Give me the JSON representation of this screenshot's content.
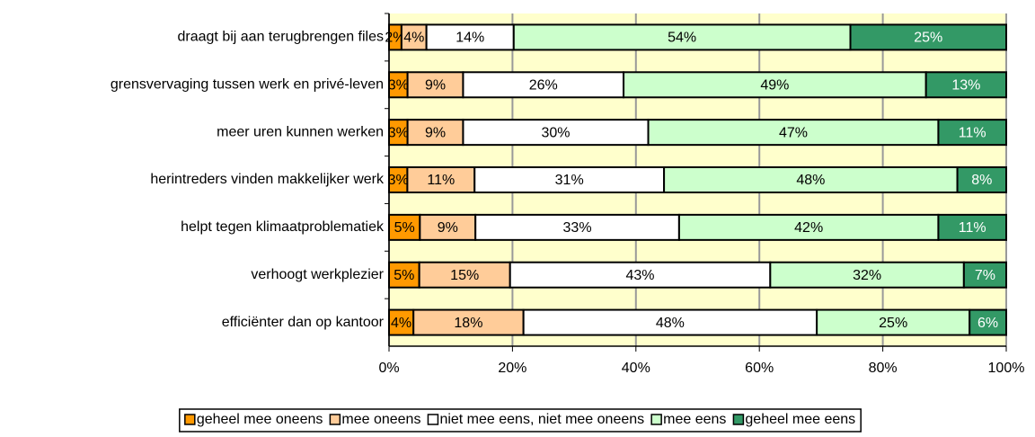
{
  "chart_data": {
    "type": "bar",
    "orientation": "horizontal",
    "stack": "percent",
    "categories": [
      "draagt bij aan terugbrengen files",
      "grensvervaging tussen werk en privé-leven",
      "meer uren kunnen werken",
      "herintreders vinden makkelijker werk",
      "helpt tegen klimaatproblematiek",
      "verhoogt werkplezier",
      "efficiënter dan op kantoor"
    ],
    "series": [
      {
        "name": "geheel mee oneens",
        "color": "#ff9900",
        "values": [
          2,
          3,
          3,
          3,
          5,
          5,
          4
        ],
        "value_labels": [
          "2%",
          "3%",
          "3%",
          "3%",
          "5%",
          "5%",
          "4%"
        ]
      },
      {
        "name": "mee oneens",
        "color": "#ffcc99",
        "values": [
          4,
          9,
          9,
          11,
          9,
          15,
          18
        ],
        "value_labels": [
          "4%",
          "9%",
          "9%",
          "11%",
          "9%",
          "15%",
          "18%"
        ]
      },
      {
        "name": "niet mee eens, niet mee oneens",
        "color": "#ffffff",
        "values": [
          14,
          26,
          30,
          31,
          33,
          43,
          48
        ],
        "value_labels": [
          "14%",
          "26%",
          "30%",
          "31%",
          "33%",
          "43%",
          "48%"
        ]
      },
      {
        "name": "mee eens",
        "color": "#ccffcc",
        "values": [
          54,
          49,
          47,
          48,
          42,
          32,
          25
        ],
        "value_labels": [
          "54%",
          "49%",
          "47%",
          "48%",
          "42%",
          "32%",
          "25%"
        ]
      },
      {
        "name": "geheel mee eens",
        "color": "#339966",
        "values": [
          25,
          13,
          11,
          8,
          11,
          7,
          6
        ],
        "value_labels": [
          "25%",
          "13%",
          "11%",
          "8%",
          "11%",
          "7%",
          "6%"
        ]
      }
    ],
    "xlim": [
      0,
      100
    ],
    "xticks": [
      {
        "value": 0,
        "label": "0%"
      },
      {
        "value": 20,
        "label": "20%"
      },
      {
        "value": 40,
        "label": "40%"
      },
      {
        "value": 60,
        "label": "60%"
      },
      {
        "value": 80,
        "label": "80%"
      },
      {
        "value": 100,
        "label": "100%"
      }
    ],
    "grid": true,
    "plot_background": "#ffffcc",
    "legend": "bottom"
  }
}
